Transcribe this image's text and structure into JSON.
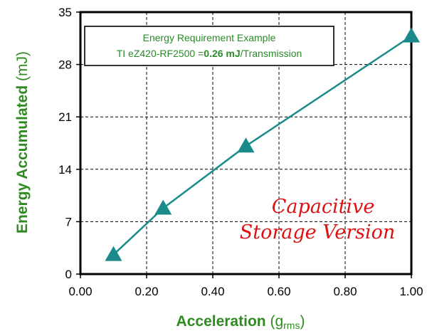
{
  "chart_data": {
    "type": "line",
    "x": [
      0.1,
      0.25,
      0.5,
      1.0
    ],
    "series": [
      {
        "values": [
          2.6,
          8.8,
          17.1,
          31.8
        ],
        "color": "#1a8a8a",
        "marker": "triangle"
      }
    ],
    "xlabel": "Acceleration",
    "xlabel_unit_base": "g",
    "xlabel_unit_sub": "rms",
    "ylabel": "Energy Accumulated",
    "ylabel_unit": "(mJ)",
    "xlim": [
      0.0,
      1.0
    ],
    "ylim": [
      0,
      35
    ],
    "xticks": [
      "0.00",
      "0.20",
      "0.40",
      "0.60",
      "0.80",
      "1.00"
    ],
    "yticks": [
      "0",
      "7",
      "14",
      "21",
      "28",
      "35"
    ],
    "grid": true,
    "label_color": "#2e8b1f",
    "info_box": {
      "title": "Energy Requirement Example",
      "line2_prefix": "TI eZ420-RF2500 =",
      "line2_bold": "0.26 mJ",
      "line2_suffix": "/Transmission"
    },
    "annotation": [
      "Capacitive",
      "Storage Version"
    ],
    "annotation_color": "#dd1111"
  }
}
